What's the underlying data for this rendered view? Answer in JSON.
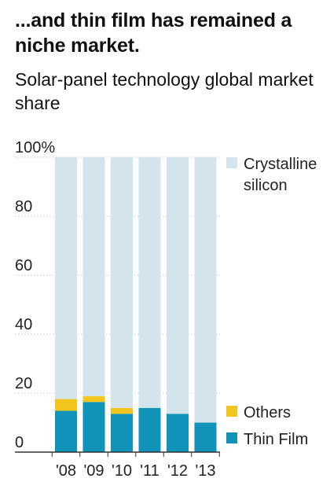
{
  "headline": "...and thin film has remained a niche market.",
  "subhead": "Solar-panel technology global market share",
  "colors": {
    "crystalline": "#d3e4ec",
    "others": "#f2c51f",
    "thin_film": "#0f93b8",
    "gridline": "#c8c8c8",
    "axis": "#333333"
  },
  "chart_data": {
    "type": "bar",
    "stacked": true,
    "categories": [
      "'08",
      "'09",
      "'10",
      "'11",
      "'12",
      "'13"
    ],
    "series": [
      {
        "name": "Thin Film",
        "color": "thin_film",
        "values": [
          14,
          17,
          13,
          15,
          13,
          10
        ]
      },
      {
        "name": "Others",
        "color": "others",
        "values": [
          4,
          2,
          2,
          0,
          0,
          0
        ]
      },
      {
        "name": "Crystalline silicon",
        "color": "crystalline",
        "values": [
          82,
          81,
          85,
          85,
          87,
          90
        ]
      }
    ],
    "ylim": [
      0,
      100
    ],
    "yticks": [
      0,
      20,
      40,
      60,
      80,
      100
    ],
    "ytick_labels": [
      "0",
      "20",
      "40",
      "60",
      "80",
      "100%"
    ],
    "grid": true,
    "legend_placement": "right",
    "legend": [
      {
        "label_lines": [
          "Crystalline",
          "silicon"
        ],
        "color": "crystalline"
      },
      {
        "label_lines": [
          "Others"
        ],
        "color": "others"
      },
      {
        "label_lines": [
          "Thin Film"
        ],
        "color": "thin_film"
      }
    ]
  }
}
